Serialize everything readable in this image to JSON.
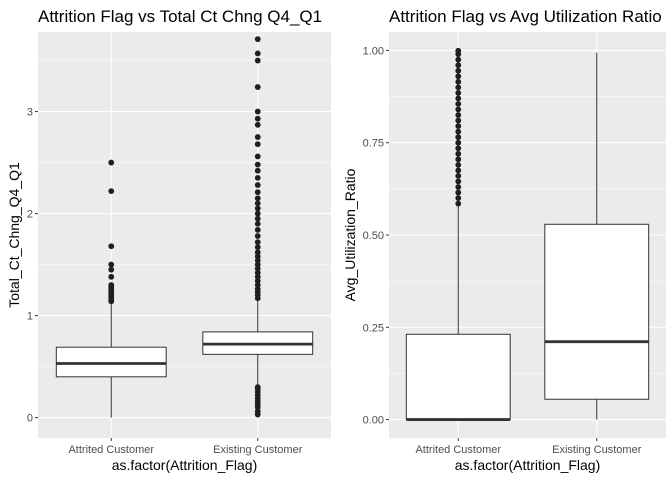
{
  "chart_data": [
    {
      "type": "box",
      "title": "Attrition Flag vs Total Ct Chng Q4_Q1",
      "xlabel": "as.factor(Attrition_Flag)",
      "ylabel": "Total_Ct_Chng_Q4_Q1",
      "ylim": [
        -0.2,
        3.78
      ],
      "yticks": [
        0,
        1,
        2,
        3
      ],
      "ytick_labels": [
        "0",
        "1",
        "2",
        "3"
      ],
      "grid": true,
      "colors": {
        "panel": "#ebebeb",
        "grid_major": "#ffffff",
        "box_fill": "#ffffff",
        "line": "#333333",
        "outlier": "#1f1f1f"
      },
      "categories": [
        "Attrited Customer",
        "Existing Customer"
      ],
      "boxes": [
        {
          "category": "Attrited Customer",
          "min": 0.0,
          "q1": 0.4,
          "median": 0.53,
          "q3": 0.69,
          "max": 1.12,
          "outliers": [
            1.14,
            1.16,
            1.18,
            1.2,
            1.22,
            1.24,
            1.26,
            1.28,
            1.3,
            1.38,
            1.45,
            1.5,
            1.68,
            2.22,
            2.5
          ]
        },
        {
          "category": "Existing Customer",
          "min": 0.33,
          "q1": 0.62,
          "median": 0.72,
          "q3": 0.84,
          "max": 1.15,
          "outliers": [
            0.03,
            0.06,
            0.1,
            0.13,
            0.16,
            0.19,
            0.22,
            0.25,
            0.28,
            0.3,
            1.17,
            1.2,
            1.23,
            1.26,
            1.3,
            1.34,
            1.38,
            1.42,
            1.46,
            1.5,
            1.54,
            1.58,
            1.62,
            1.67,
            1.72,
            1.78,
            1.84,
            1.9,
            1.95,
            2.0,
            2.05,
            2.1,
            2.15,
            2.21,
            2.28,
            2.35,
            2.42,
            2.48,
            2.56,
            2.68,
            2.75,
            2.87,
            2.93,
            3.0,
            3.24,
            3.5,
            3.57,
            3.71
          ]
        }
      ]
    },
    {
      "type": "box",
      "title": "Attrition Flag vs Avg Utilization Ratio",
      "xlabel": "as.factor(Attrition_Flag)",
      "ylabel": "Avg_Utilization_Ratio",
      "ylim": [
        -0.05,
        1.05
      ],
      "yticks": [
        0,
        0.25,
        0.5,
        0.75,
        1
      ],
      "ytick_labels": [
        "0.00",
        "0.25",
        "0.50",
        "0.75",
        "1.00"
      ],
      "grid": true,
      "colors": {
        "panel": "#ebebeb",
        "grid_major": "#ffffff",
        "box_fill": "#ffffff",
        "line": "#333333",
        "outlier": "#1f1f1f"
      },
      "categories": [
        "Attrited Customer",
        "Existing Customer"
      ],
      "boxes": [
        {
          "category": "Attrited Customer",
          "min": 0.0,
          "q1": 0.0,
          "median": 0.0,
          "q3": 0.231,
          "max": 0.578,
          "outliers": [
            0.585,
            0.6,
            0.615,
            0.63,
            0.645,
            0.66,
            0.675,
            0.69,
            0.705,
            0.72,
            0.735,
            0.75,
            0.765,
            0.78,
            0.795,
            0.81,
            0.825,
            0.84,
            0.855,
            0.87,
            0.885,
            0.9,
            0.915,
            0.93,
            0.945,
            0.96,
            0.975,
            0.99,
            0.999
          ]
        },
        {
          "category": "Existing Customer",
          "min": 0.0,
          "q1": 0.055,
          "median": 0.211,
          "q3": 0.529,
          "max": 0.994,
          "outliers": []
        }
      ]
    }
  ]
}
